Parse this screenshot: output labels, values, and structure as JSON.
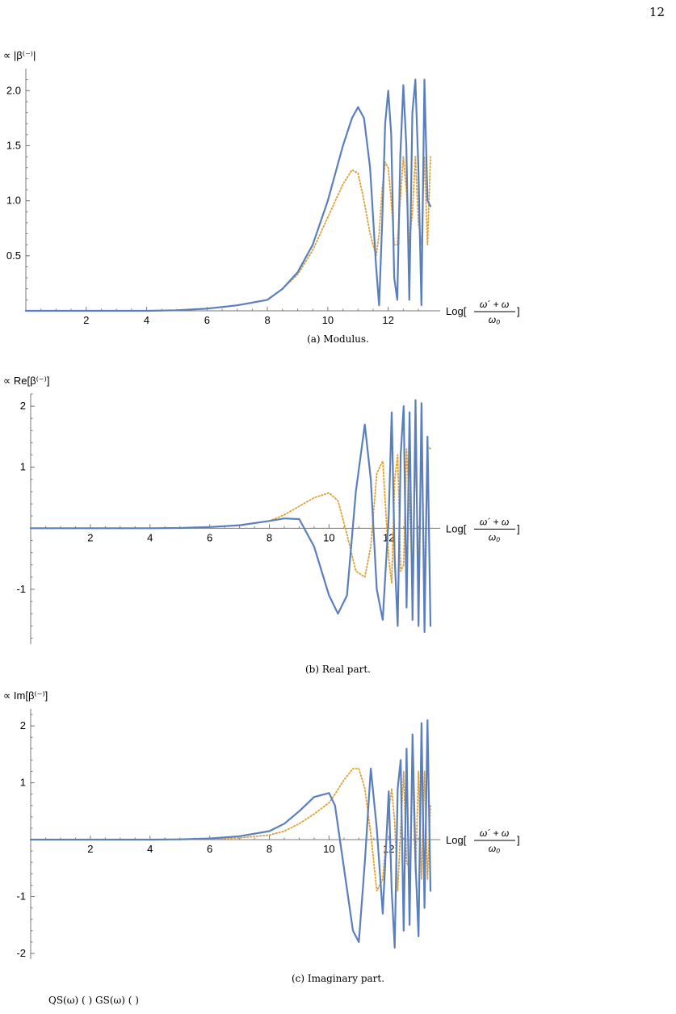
{
  "page_number": "12",
  "footer_text": "QS(ω) (         )      GS(ω) (         )",
  "x_axis_label": {
    "prefix": "Log[",
    "numerator": "ω´ + ω",
    "denominator": "ω₀",
    "suffix": "]"
  },
  "colors": {
    "solid": "#5b7fbd",
    "dotted": "#e0a030"
  },
  "chart_data": [
    {
      "type": "line",
      "title": "",
      "ylabel": "∝ |β⁽⁻⁾|",
      "caption": "(a) Modulus.",
      "xlim": [
        0,
        13.4
      ],
      "ylim": [
        0,
        2.2
      ],
      "x_ticks": [
        2,
        4,
        6,
        8,
        10,
        12
      ],
      "x_tick_labels": [
        "2",
        "4",
        "6",
        "8",
        "10",
        "12"
      ],
      "y_ticks": [
        0.5,
        1.0,
        1.5,
        2.0
      ],
      "y_tick_labels": [
        "0.5",
        "1.0",
        "1.5",
        "2.0"
      ],
      "series": [
        {
          "style": "solid",
          "x": [
            0,
            2,
            4,
            5,
            6,
            7,
            8,
            8.5,
            9,
            9.5,
            10,
            10.5,
            10.8,
            11,
            11.2,
            11.4,
            11.6,
            11.7,
            11.8,
            11.9,
            12.0,
            12.1,
            12.2,
            12.3,
            12.4,
            12.5,
            12.6,
            12.7,
            12.8,
            12.9,
            13.0,
            13.1,
            13.2,
            13.3,
            13.4
          ],
          "y": [
            0,
            0,
            0,
            0.005,
            0.02,
            0.05,
            0.1,
            0.2,
            0.35,
            0.6,
            1.0,
            1.5,
            1.75,
            1.85,
            1.75,
            1.3,
            0.4,
            0.05,
            0.8,
            1.7,
            2.0,
            1.6,
            0.3,
            0.1,
            1.4,
            2.05,
            1.5,
            0.1,
            1.8,
            2.1,
            1.3,
            0.05,
            2.1,
            1.0,
            0.95
          ]
        },
        {
          "style": "dotted",
          "x": [
            0,
            2,
            4,
            5,
            6,
            7,
            8,
            8.5,
            9,
            9.5,
            10,
            10.5,
            10.8,
            11,
            11.2,
            11.4,
            11.6,
            11.7,
            11.8,
            11.9,
            12.0,
            12.1,
            12.2,
            12.3,
            12.4,
            12.5,
            12.6,
            12.7,
            12.8,
            12.9,
            13.0,
            13.1,
            13.2,
            13.3,
            13.4
          ],
          "y": [
            0,
            0,
            0,
            0.005,
            0.02,
            0.05,
            0.1,
            0.2,
            0.33,
            0.55,
            0.85,
            1.15,
            1.28,
            1.25,
            1.0,
            0.7,
            0.5,
            0.7,
            1.1,
            1.35,
            1.3,
            1.0,
            0.6,
            0.6,
            1.0,
            1.4,
            1.1,
            0.6,
            0.9,
            1.4,
            0.8,
            0.6,
            1.4,
            0.6,
            1.4
          ]
        }
      ]
    },
    {
      "type": "line",
      "title": "",
      "ylabel": "∝ Re[β⁽⁻⁾]",
      "caption": "(b) Real part.",
      "xlim": [
        0,
        13.4
      ],
      "ylim": [
        -1.9,
        2.2
      ],
      "x_ticks": [
        2,
        4,
        6,
        8,
        10,
        12
      ],
      "x_tick_labels": [
        "2",
        "4",
        "6",
        "8",
        "10",
        "12"
      ],
      "y_ticks": [
        -1,
        1,
        2
      ],
      "y_tick_labels": [
        "-1",
        "1",
        "2"
      ],
      "series": [
        {
          "style": "solid",
          "x": [
            0,
            2,
            4,
            5,
            6,
            7,
            8,
            8.5,
            9,
            9.5,
            10,
            10.3,
            10.6,
            10.9,
            11.2,
            11.4,
            11.6,
            11.8,
            12.0,
            12.1,
            12.2,
            12.3,
            12.4,
            12.5,
            12.6,
            12.7,
            12.8,
            12.9,
            13.0,
            13.1,
            13.2,
            13.3,
            13.4
          ],
          "y": [
            0,
            0,
            0,
            0.005,
            0.02,
            0.05,
            0.12,
            0.16,
            0.15,
            -0.3,
            -1.1,
            -1.4,
            -1.1,
            0.6,
            1.7,
            0.8,
            -1.0,
            -1.5,
            0.2,
            1.9,
            -0.5,
            -1.6,
            1.2,
            2.0,
            -1.3,
            1.9,
            -1.5,
            2.1,
            -1.6,
            2.05,
            -1.7,
            1.5,
            -1.6
          ]
        },
        {
          "style": "dotted",
          "x": [
            0,
            2,
            4,
            5,
            6,
            7,
            8,
            8.5,
            9,
            9.5,
            10,
            10.3,
            10.6,
            10.9,
            11.2,
            11.4,
            11.6,
            11.8,
            12.0,
            12.1,
            12.2,
            12.3,
            12.4,
            12.5,
            12.6,
            12.7,
            12.8,
            12.9,
            13.0,
            13.1,
            13.2,
            13.3,
            13.4
          ],
          "y": [
            0,
            0,
            0,
            0.005,
            0.02,
            0.05,
            0.12,
            0.22,
            0.36,
            0.5,
            0.58,
            0.45,
            -0.1,
            -0.7,
            -0.8,
            -0.3,
            0.9,
            1.1,
            -0.5,
            -0.9,
            0.8,
            1.2,
            -0.7,
            -0.6,
            1.3,
            0.4,
            -1.0,
            1.3,
            -0.7,
            1.3,
            -0.9,
            1.35,
            1.3
          ]
        }
      ]
    },
    {
      "type": "line",
      "title": "",
      "ylabel": "∝ Im[β⁽⁻⁾]",
      "caption": "(c) Imaginary part.",
      "xlim": [
        0,
        13.4
      ],
      "ylim": [
        -2.1,
        2.3
      ],
      "x_ticks": [
        2,
        4,
        6,
        8,
        10,
        12
      ],
      "x_tick_labels": [
        "2",
        "4",
        "6",
        "8",
        "10",
        "12"
      ],
      "y_ticks": [
        -2,
        -1,
        1,
        2
      ],
      "y_tick_labels": [
        "-2",
        "-1",
        "1",
        "2"
      ],
      "series": [
        {
          "style": "solid",
          "x": [
            0,
            2,
            4,
            5,
            6,
            7,
            8,
            8.5,
            9,
            9.5,
            10,
            10.2,
            10.5,
            10.8,
            11.0,
            11.2,
            11.4,
            11.6,
            11.8,
            12.0,
            12.1,
            12.2,
            12.3,
            12.4,
            12.5,
            12.6,
            12.7,
            12.8,
            12.9,
            13.0,
            13.1,
            13.2,
            13.3,
            13.4
          ],
          "y": [
            0,
            0,
            0,
            0.005,
            0.02,
            0.06,
            0.15,
            0.28,
            0.5,
            0.75,
            0.82,
            0.6,
            -0.5,
            -1.6,
            -1.8,
            -0.4,
            1.25,
            0.2,
            -1.3,
            0.85,
            -0.9,
            -1.9,
            0.9,
            1.4,
            -1.6,
            1.6,
            -1.5,
            1.85,
            -0.4,
            -1.7,
            2.05,
            -1.2,
            2.1,
            -0.9
          ]
        },
        {
          "style": "dotted",
          "x": [
            0,
            2,
            4,
            5,
            6,
            7,
            8,
            8.5,
            9,
            9.5,
            10,
            10.2,
            10.5,
            10.8,
            11.0,
            11.2,
            11.4,
            11.6,
            11.8,
            12.0,
            12.1,
            12.2,
            12.3,
            12.4,
            12.5,
            12.6,
            12.7,
            12.8,
            12.9,
            13.0,
            13.1,
            13.2,
            13.3,
            13.4
          ],
          "y": [
            0,
            0,
            0,
            0.003,
            0.01,
            0.03,
            0.08,
            0.15,
            0.28,
            0.45,
            0.65,
            0.8,
            1.05,
            1.25,
            1.25,
            0.9,
            0.1,
            -0.9,
            -0.7,
            0.5,
            0.9,
            0.3,
            -0.9,
            0.2,
            1.2,
            -0.4,
            -0.5,
            1.2,
            -0.6,
            1.2,
            -0.7,
            1.2,
            -0.7,
            0.6
          ]
        }
      ]
    }
  ]
}
